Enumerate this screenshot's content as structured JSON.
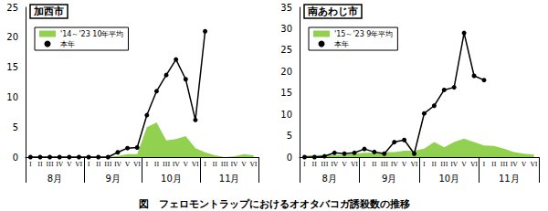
{
  "caption": "図　フェロモントラップにおけるオオタバコガ誘殺数の推移",
  "chart_data": [
    {
      "type": "line",
      "title": "加西市",
      "categories": [
        "I",
        "II",
        "III",
        "IV",
        "V",
        "VI",
        "I",
        "II",
        "III",
        "IV",
        "V",
        "VI",
        "I",
        "II",
        "III",
        "IV",
        "V",
        "VI",
        "I",
        "II",
        "III",
        "IV",
        "V",
        "VI"
      ],
      "category_groups": [
        "8月",
        "9月",
        "10月",
        "11月"
      ],
      "series": [
        {
          "name": "'14～'23 10年平均",
          "type": "area",
          "color": "#92d050",
          "values": [
            0,
            0,
            0,
            0,
            0,
            0,
            0,
            0,
            0,
            0.2,
            0.5,
            0.5,
            5,
            5.8,
            2.8,
            3,
            3.5,
            1.5,
            0.8,
            0.3,
            0,
            0.1,
            0.5,
            0.3
          ]
        },
        {
          "name": "本年",
          "type": "line",
          "color": "#000000",
          "marker": "circle",
          "values": [
            0,
            0,
            0,
            0,
            0,
            0,
            0,
            0,
            0,
            0.8,
            1.5,
            1.6,
            7,
            11,
            13.7,
            16.3,
            13,
            6.2,
            21,
            null,
            null,
            null,
            null,
            null
          ]
        }
      ],
      "ylim": [
        0,
        25
      ],
      "yticks": [
        0,
        5,
        10,
        15,
        20,
        25
      ],
      "grid": false,
      "legend": "upper left"
    },
    {
      "type": "line",
      "title": "南あわじ市",
      "categories": [
        "I",
        "II",
        "III",
        "IV",
        "V",
        "VI",
        "I",
        "II",
        "III",
        "IV",
        "V",
        "VI",
        "I",
        "II",
        "III",
        "IV",
        "V",
        "VI",
        "I",
        "II",
        "III",
        "IV",
        "V",
        "VI"
      ],
      "category_groups": [
        "8月",
        "9月",
        "10月",
        "11月"
      ],
      "series": [
        {
          "name": "'15～'23 9年平均",
          "type": "area",
          "color": "#92d050",
          "values": [
            0.3,
            0.5,
            0.5,
            0.5,
            0.5,
            0.8,
            1,
            1,
            1.2,
            1.2,
            1.5,
            1.5,
            2,
            3.5,
            2.3,
            3.5,
            4.3,
            3.5,
            2.7,
            2.6,
            2,
            1.2,
            0.8,
            0.6
          ]
        },
        {
          "name": "本年",
          "type": "line",
          "color": "#000000",
          "marker": "circle",
          "values": [
            0,
            0,
            0.2,
            1,
            0.8,
            1,
            1.9,
            1.2,
            0.8,
            3.5,
            4,
            0.8,
            10.2,
            12,
            15.7,
            16.3,
            29,
            19,
            18,
            null,
            null,
            null,
            null,
            null
          ]
        }
      ],
      "ylim": [
        0,
        35
      ],
      "yticks": [
        0,
        5,
        10,
        15,
        20,
        25,
        30,
        35
      ],
      "grid": false,
      "legend": "upper left"
    }
  ]
}
